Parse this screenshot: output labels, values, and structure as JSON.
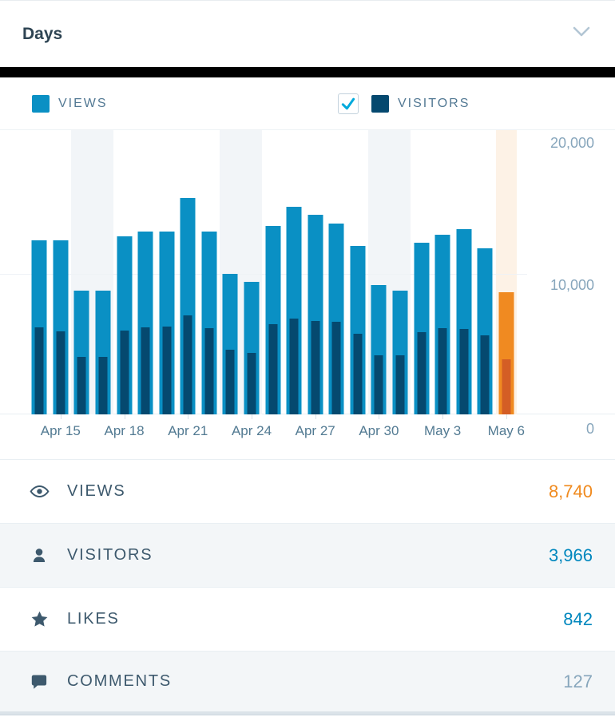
{
  "header": {
    "title": "Days"
  },
  "legend": {
    "views": {
      "label": "VIEWS"
    },
    "visitors": {
      "label": "VISITORS",
      "checked": true
    }
  },
  "chart_data": {
    "type": "bar",
    "title": "Views and Visitors by day",
    "categories": [
      "Apr 14",
      "Apr 15",
      "Apr 16",
      "Apr 17",
      "Apr 18",
      "Apr 19",
      "Apr 20",
      "Apr 21",
      "Apr 22",
      "Apr 23",
      "Apr 24",
      "Apr 25",
      "Apr 26",
      "Apr 27",
      "Apr 28",
      "Apr 29",
      "Apr 30",
      "May 1",
      "May 2",
      "May 3",
      "May 4",
      "May 5",
      "May 6"
    ],
    "series": [
      {
        "name": "Views",
        "values": [
          12400,
          12400,
          8840,
          8840,
          12650,
          13030,
          13030,
          15410,
          13030,
          10030,
          9460,
          13430,
          14790,
          14220,
          13600,
          12010,
          9240,
          8840,
          12240,
          12800,
          13200,
          11840,
          8740
        ]
      },
      {
        "name": "Visitors",
        "values": [
          6230,
          5950,
          4140,
          4140,
          6010,
          6230,
          6290,
          7080,
          6180,
          4650,
          4420,
          6460,
          6860,
          6690,
          6630,
          5780,
          4250,
          4250,
          5890,
          6180,
          6120,
          5670,
          3966
        ]
      }
    ],
    "x_tick_labels": [
      "Apr 15",
      "Apr 18",
      "Apr 21",
      "Apr 24",
      "Apr 27",
      "Apr 30",
      "May 3",
      "May 6"
    ],
    "y_tick_labels": [
      "20,000",
      "10,000",
      "0"
    ],
    "ylim": [
      0,
      20200
    ],
    "grid": "horizontal",
    "legend_position": "top",
    "weekend_ranges": [
      [
        2,
        3
      ],
      [
        9,
        10
      ],
      [
        16,
        17
      ]
    ],
    "today_index": 22,
    "colors": {
      "views": "#0a90c4",
      "visitors": "#05496f",
      "today_views": "#f08a21",
      "today_visitors": "#d45e25",
      "weekend_bg": "#f2f5f8",
      "today_bg": "#fdf2e6",
      "check": "#00aadc"
    }
  },
  "summary": {
    "rows": [
      {
        "icon": "eye-icon",
        "label": "VIEWS",
        "value": "8,740",
        "value_color": "#f08a1e"
      },
      {
        "icon": "person-icon",
        "label": "VISITORS",
        "value": "3,966",
        "value_color": "#0087be"
      },
      {
        "icon": "star-icon",
        "label": "LIKES",
        "value": "842",
        "value_color": "#0087be"
      },
      {
        "icon": "comment-icon",
        "label": "COMMENTS",
        "value": "127",
        "value_color": "#87a6bc"
      }
    ]
  }
}
